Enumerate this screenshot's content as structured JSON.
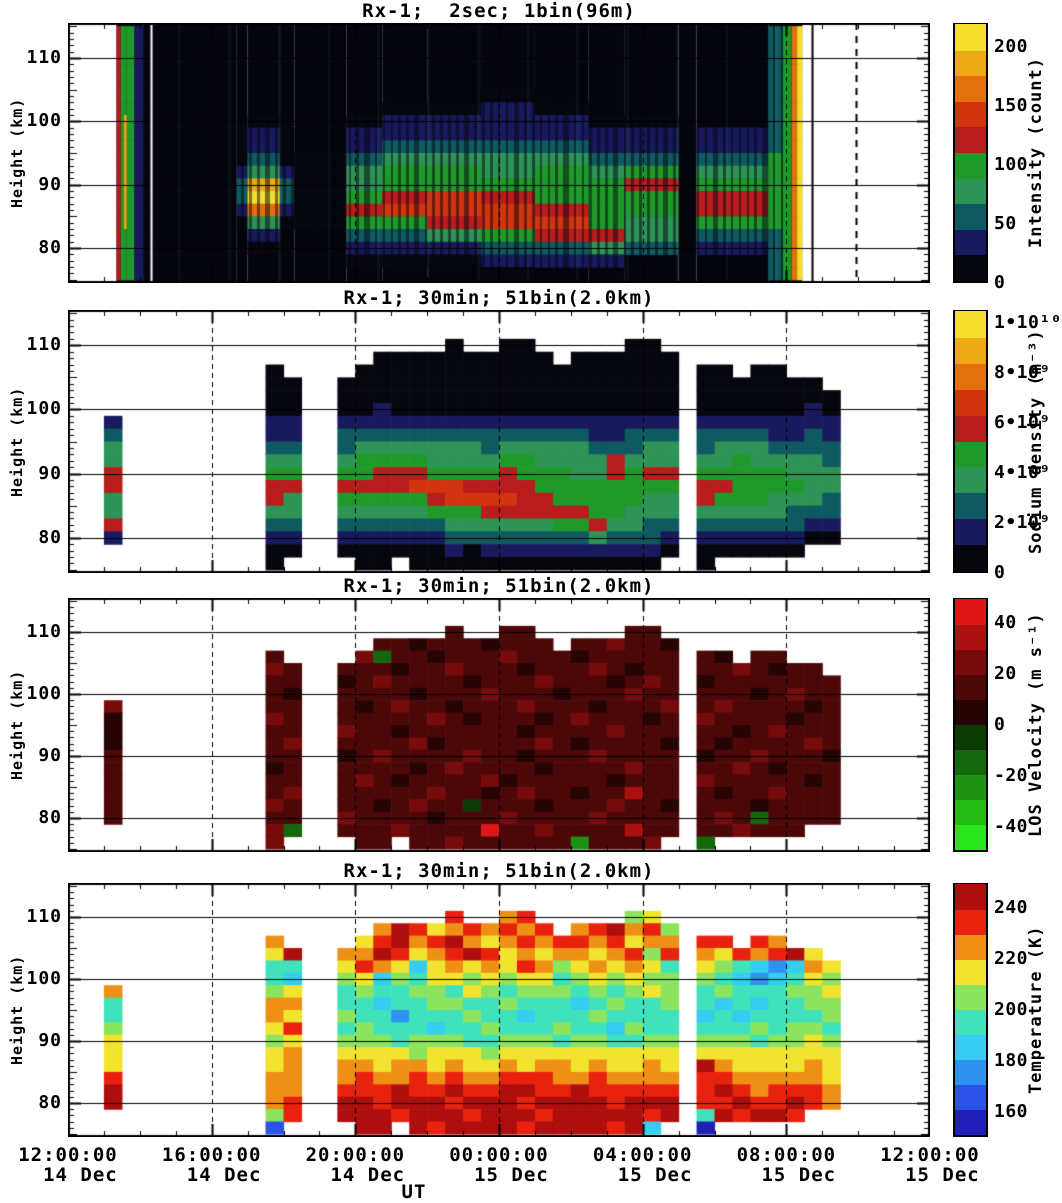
{
  "chart_data": {
    "type": "heatmap",
    "description": "Sodium lidar quicklook, 4 stacked time-height panels, 14-15 Dec, 12:00-12:00 UT",
    "x_axis": {
      "label": "UT",
      "hours_total": 24,
      "major_tick_hours": [
        0,
        4,
        8,
        12,
        16,
        20,
        24
      ],
      "grid_hours": [
        4,
        8,
        12,
        16,
        20
      ],
      "tick_labels": [
        {
          "h": 0,
          "time": "12:00:00",
          "date": "14 Dec"
        },
        {
          "h": 4,
          "time": "16:00:00",
          "date": "14 Dec"
        },
        {
          "h": 8,
          "time": "20:00:00",
          "date": "14 Dec"
        },
        {
          "h": 12,
          "time": "00:00:00",
          "date": "15 Dec"
        },
        {
          "h": 16,
          "time": "04:00:00",
          "date": "15 Dec"
        },
        {
          "h": 20,
          "time": "08:00:00",
          "date": "15 Dec"
        },
        {
          "h": 24,
          "time": "12:00:00",
          "date": "15 Dec"
        }
      ]
    },
    "y_axis": {
      "label": "Height (km)",
      "range": [
        74.5,
        115.5
      ],
      "major_ticks": [
        80,
        90,
        100,
        110
      ]
    },
    "grid_spec": {
      "columns": 48,
      "minutes_per_column": 30,
      "rows": 20,
      "row_top_km": 115,
      "km_per_row": 2,
      "legend": "grid chars: 0-9 = palette level index, . = no data"
    },
    "palettes": {
      "counts": [
        "#06060f",
        "#191a5e",
        "#0e5a60",
        "#2e9356",
        "#1f9a2a",
        "#b81c1c",
        "#d33410",
        "#e2710d",
        "#ecab16",
        "#f3df2c"
      ],
      "velocity": [
        "#2ce61c",
        "#26bb17",
        "#1e9112",
        "#15670c",
        "#0b3a05",
        "#260404",
        "#4c0808",
        "#770b0b",
        "#ac1010",
        "#e01616"
      ],
      "temperature": [
        "#2020b6",
        "#2a52e8",
        "#2e93f0",
        "#36cdf0",
        "#40e2bc",
        "#8ce45e",
        "#f2e32e",
        "#ee9016",
        "#e8220e",
        "#ae0e0e"
      ]
    },
    "panels": [
      {
        "title": "Rx-1;  2sec; 1bin(96m)",
        "kind": "segments",
        "palette": "counts",
        "colorbar": {
          "title": "Intensity (count)",
          "range": [
            0,
            220
          ],
          "ticks": [
            {
              "f": 0.0,
              "label": "0"
            },
            {
              "f": 0.227,
              "label": "50"
            },
            {
              "f": 0.455,
              "label": "100"
            },
            {
              "f": 0.682,
              "label": "150"
            },
            {
              "f": 0.909,
              "label": "200"
            }
          ]
        },
        "segments": [
          {
            "t0": 0.0,
            "t1": 1.35,
            "p": "blank"
          },
          {
            "t0": 1.35,
            "t1": 1.47,
            "p": "satRed"
          },
          {
            "t0": 1.47,
            "t1": 1.56,
            "p": "satGreen"
          },
          {
            "t0": 1.56,
            "t1": 1.64,
            "p": "satLine"
          },
          {
            "t0": 1.64,
            "t1": 1.85,
            "p": "satGreen"
          },
          {
            "t0": 1.85,
            "t1": 2.1,
            "p": "satNavy"
          },
          {
            "t0": 2.1,
            "t1": 2.28,
            "p": "satFade"
          },
          {
            "t0": 2.28,
            "t1": 4.7,
            "p": "dark"
          },
          {
            "t0": 4.7,
            "t1": 5.0,
            "p": "blobWeak"
          },
          {
            "t0": 5.0,
            "t1": 5.9,
            "p": "blob"
          },
          {
            "t0": 5.9,
            "t1": 6.3,
            "p": "blobWeak"
          },
          {
            "t0": 6.3,
            "t1": 7.75,
            "p": "sparse"
          },
          {
            "t0": 7.75,
            "t1": 8.75,
            "p": "layerStart"
          },
          {
            "t0": 8.75,
            "t1": 10.0,
            "p": "layerA"
          },
          {
            "t0": 10.0,
            "t1": 11.5,
            "p": "layerB"
          },
          {
            "t0": 11.5,
            "t1": 13.0,
            "p": "layerC"
          },
          {
            "t0": 13.0,
            "t1": 14.5,
            "p": "layerD"
          },
          {
            "t0": 14.5,
            "t1": 15.5,
            "p": "layerE"
          },
          {
            "t0": 15.5,
            "t1": 17.0,
            "p": "layerF"
          },
          {
            "t0": 17.0,
            "t1": 17.5,
            "p": "dark"
          },
          {
            "t0": 17.5,
            "t1": 19.5,
            "p": "layerG"
          },
          {
            "t0": 19.5,
            "t1": 19.9,
            "p": "preSat"
          },
          {
            "t0": 19.9,
            "t1": 20.15,
            "p": "satGreen"
          },
          {
            "t0": 20.15,
            "t1": 20.3,
            "p": "satOrange"
          },
          {
            "t0": 20.3,
            "t1": 20.45,
            "p": "satYellow"
          },
          {
            "t0": 20.45,
            "t1": 24.0,
            "p": "blank"
          }
        ],
        "profiles": {
          "satRed": "55555555555555555555",
          "satGreen": "44444444444444444444",
          "satLine": "44444448888888884444",
          "satNavy": "11111111111111111111",
          "satFade": "00000000000000000000",
          "dark": "....................",
          "sparse": "..........000000....",
          "blobWeak": "........00012210....",
          "blob": ".......01123897310..",
          "layerStart": ".......011233454210.",
          "layerA": "......0112344564210.",
          "layerB": "......0112344665310.",
          "layerC": ".....011123345664210",
          "layerD": "......0112344456521.",
          "layerE": ".......011234444531.",
          "layerF": ".......01124544332..",
          "layerG": "........1123455421..",
          "preSat": "22222222224444442222",
          "satOrange": "77777777777777777777",
          "satYellow": "99999999999999999999"
        },
        "markers": [
          {
            "t": 2.3,
            "color": "#ffffff",
            "dash": false
          },
          {
            "t": 20.72,
            "color": "#000000",
            "dash": false
          },
          {
            "t": 21.95,
            "color": "#000000",
            "dash": true
          }
        ],
        "streak_region": [
          2.28,
          19.9
        ]
      },
      {
        "title": "Rx-1; 30min; 51bin(2.0km)",
        "kind": "grid",
        "palette": "counts",
        "colorbar": {
          "title": "Sodium density (m⁻³)",
          "range": [
            0,
            10500000000
          ],
          "ticks": [
            {
              "f": 0.0,
              "label": "0"
            },
            {
              "f": 0.19,
              "label": "2•10⁹"
            },
            {
              "f": 0.381,
              "label": "4•10⁹"
            },
            {
              "f": 0.571,
              "label": "6•10⁹"
            },
            {
              "f": 0.762,
              "label": "8•10⁹"
            },
            {
              "f": 0.952,
              "label": "1•10¹⁰"
            }
          ]
        },
        "grid": [
          "................................................",
          "................................................",
          ".....................0..00.....00...............",
          ".................0000000000.000000..............",
          "...........0....000000000000000000.00.00........",
          "...........00..0000000000000000000.0000000......",
          "...........00..0000000000000000000.00000000.....",
          "...........00..0010000000000000000.00000010.....",
          "..1........11..1111111111111111111.11111111.....",
          "..2........11..2222222222222211222.22221121.....",
          "..3........22..2333333323333322233.23332222.....",
          "..3........33..3444433334433335333.33433332.....",
          "..5........44..4455544445444335455.44444333.....",
          "..5........55..5555666555544444444.55444433.....",
          "..3........53..4444456666554444433.54443332.....",
          "..3........33..3333344455555544333.33333222.....",
          "..5........22..2222223333334453322.22222211.....",
          "..1........11..1111112222222232221.11111100.....",
          "...........00..0000001011111111110.000000.......",
          "...........0....00.00000000000000..0............"
        ]
      },
      {
        "title": "Rx-1; 30min; 51bin(2.0km)",
        "kind": "grid",
        "palette": "velocity",
        "mask": 1,
        "default_level": "6",
        "colorbar": {
          "title": "LOS Velocity (m s⁻¹)",
          "range": [
            -50,
            50
          ],
          "ticks": [
            {
              "f": 0.1,
              "label": "-40"
            },
            {
              "f": 0.3,
              "label": "-20"
            },
            {
              "f": 0.5,
              "label": "0"
            },
            {
              "f": 0.7,
              "label": "20"
            },
            {
              "f": 0.9,
              "label": "40"
            }
          ]
        },
        "grid": [
          "................................................",
          "................................................",
          ".....................6..66.....66...............",
          ".................6656665666.667665..............",
          "...........6....736656667666566666.65.66........",
          "...........76..6665667666566676566.6676566......",
          "...........66..5676666566676665676.56666666.....",
          "...........65..6666566676665666766.66656766.....",
          "..7........66..6567665666766656667.67666656.....",
          "..5........76..6666676566656766656.76666566.....",
          "..5........66..7665666666566667666.66567666.....",
          "..5........67..6666756666676566665.65666676.....",
          "..6........66..5676666766566676666.56676665.....",
          "..6........56..6666567666656666766.66765666.....",
          "..6........66..6765666675666665666.76666656.....",
          "..6........67..6666676656766566866.65667666.....",
          "..6........76..6656766466656667665.66656666.....",
          "..6........66..7666656667666676666.67636666.....",
          "...........73..6667666696676666866.667666.......",
          "...........7....66.66766666626667..3............"
        ]
      },
      {
        "title": "Rx-1; 30min; 51bin(2.0km)",
        "kind": "grid",
        "palette": "temperature",
        "mask": 1,
        "default_level": "5",
        "colorbar": {
          "title": "Temperature (K)",
          "range": [
            150,
            250
          ],
          "ticks": [
            {
              "f": 0.1,
              "label": "160"
            },
            {
              "f": 0.3,
              "label": "180"
            },
            {
              "f": 0.5,
              "label": "200"
            },
            {
              "f": 0.7,
              "label": "220"
            },
            {
              "f": 0.9,
              "label": "240"
            }
          ]
        },
        "grid": [
          "................................................",
          "................................................",
          ".....................8..78.....56...............",
          ".................7986787878.789785..............",
          "...........7....689789767878878677.88.87........",
          "...........69..7798678986767767858.7687896......",
          "...........44..6876367676875676764.65432376.....",
          "...........43..5635466565664565655.54323465.....",
          "..7........56..4544554654555454565.45444556.....",
          "..4........77..4434455445444345445.43434455.....",
          "..4........76..5442444544344454444.34344445.....",
          "..5........68..4544434454445443544.44454554.....",
          "..6........56..5554555445554554455.55545565.....",
          "..6........67..6666566656666666666.66666666.....",
          "..6........67..7767767667677676676.97666676.....",
          "..8........77..7877878778887787777.88777776.....",
          "..9........77..8889889889988988888.89878887.....",
          "..9........78..9989998999899998999.88988987.....",
          "...........58..9998999899989999989.498998.......",
          "...........1....99.98999989999893..0............"
        ]
      }
    ]
  }
}
